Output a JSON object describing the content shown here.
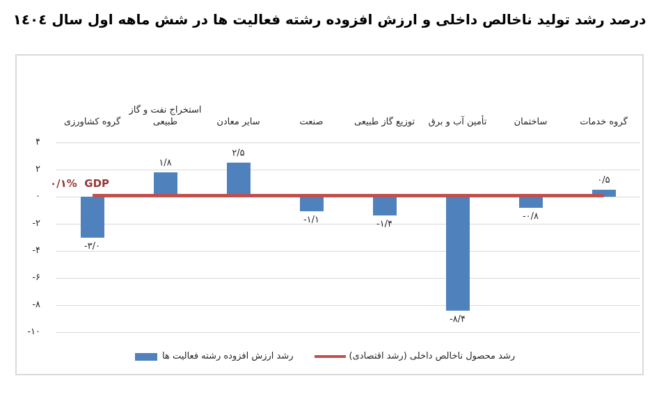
{
  "title": {
    "text": "درصد رشد تولید ناخالص داخلی و ارزش افزوده رشته فعالیت ها در شش ماهه اول سال ١٤٠٤"
  },
  "colors": {
    "bar": "#4F81BD",
    "gdp_line": "#C0504D",
    "annotation_text": "#953735",
    "gridline": "#D9D9D9",
    "frame_border": "#D9D9D9",
    "label_text": "#262626"
  },
  "gdp_annotation": {
    "text": "۰/۱%  GDP"
  },
  "legend": {
    "items": [
      {
        "series": "bars",
        "label": "رشد ارزش افزوده رشته فعالیت ها"
      },
      {
        "series": "gdp-line",
        "label": "رشد محصول ناخالص داخلی (رشد اقتصادی)"
      }
    ]
  },
  "chart_data": {
    "type": "bar",
    "direction": "rtl",
    "title": "درصد رشد تولید ناخالص داخلی و ارزش افزوده رشته فعالیت ها در شش ماهه اول سال ١٤٠٤",
    "categories": [
      "گروه کشاورزی",
      "استخراج نفت و گاز طبیعی",
      "سایر معادن",
      "صنعت",
      "توزیع گاز طبیعی",
      "تأمین آب و برق",
      "ساختمان",
      "گروه خدمات"
    ],
    "series": [
      {
        "name": "رشد ارزش افزوده رشته فعالیت ها",
        "type": "bar",
        "values": [
          -3.0,
          1.8,
          2.5,
          -1.1,
          -1.4,
          -8.4,
          -0.8,
          0.5
        ],
        "value_labels": [
          "-۳/۰",
          "۱/۸",
          "۲/۵",
          "-۱/۱",
          "-۱/۴",
          "-۸/۴",
          "-۰/۸",
          "۰/۵"
        ]
      },
      {
        "name": "رشد محصول ناخالص داخلی (رشد اقتصادی)",
        "type": "line",
        "constant_value": 0.1,
        "annotation": "۰/۱%  GDP"
      }
    ],
    "xlabel": "",
    "ylabel": "",
    "ylim": [
      -10,
      4
    ],
    "y_ticks": [
      {
        "value": 4,
        "label": "۴"
      },
      {
        "value": 2,
        "label": "۲"
      },
      {
        "value": 0,
        "label": "۰"
      },
      {
        "value": -2,
        "label": "-۲"
      },
      {
        "value": -4,
        "label": "-۴"
      },
      {
        "value": -6,
        "label": "-۶"
      },
      {
        "value": -8,
        "label": "-۸"
      },
      {
        "value": -10,
        "label": "-۱۰"
      }
    ],
    "grid": "horizontal",
    "legend_position": "bottom-inside"
  }
}
